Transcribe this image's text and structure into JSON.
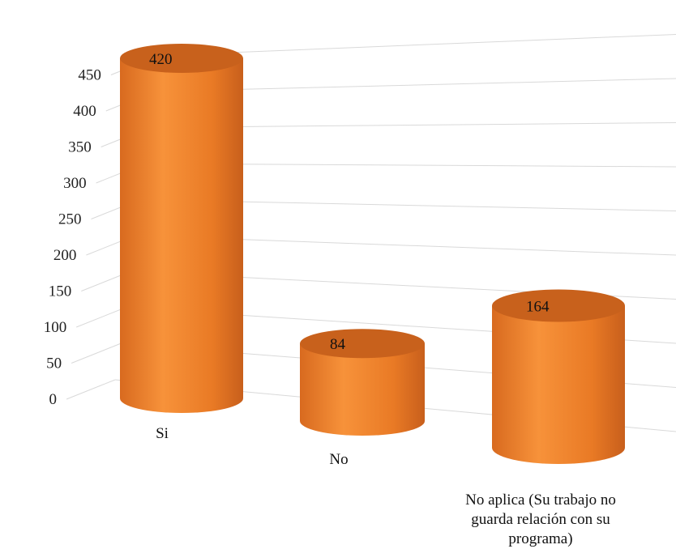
{
  "chart_data": {
    "type": "bar",
    "style": "3d-cylinder",
    "categories": [
      "Si",
      "No",
      "No aplica (Su trabajo no guarda relación con su programa)"
    ],
    "values": [
      420,
      84,
      164
    ],
    "data_labels": [
      "420",
      "84",
      "164"
    ],
    "ylim": [
      0,
      450
    ],
    "yticks": [
      "0",
      "50",
      "100",
      "150",
      "200",
      "250",
      "300",
      "350",
      "400",
      "450"
    ],
    "title": "",
    "xlabel": "",
    "ylabel": "",
    "grid": true,
    "legend": "none",
    "colors": {
      "bar_light": "#f7923a",
      "bar_mid": "#e97a25",
      "bar_dark": "#b9561a",
      "bar_top": "#c8611c",
      "grid": "#d9d9d9"
    }
  }
}
